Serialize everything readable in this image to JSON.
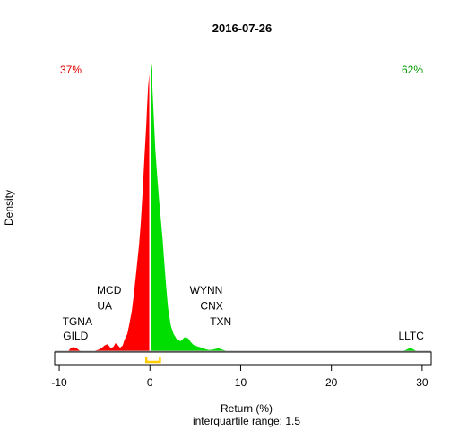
{
  "chart_data": {
    "type": "area",
    "title": "2016-07-26",
    "xlabel": "Return (%)",
    "ylabel": "Density",
    "subtitle": "interquartile range: 1.5",
    "xlim": [
      -10.5,
      31
    ],
    "x_ticks": [
      -10,
      0,
      10,
      20,
      30
    ],
    "ylim": [
      0,
      1.0
    ],
    "negative_share": "37%",
    "positive_share": "62%",
    "colors": {
      "negative": "#ff0000",
      "positive": "#00dd00",
      "iqr": "#ffcc00",
      "median": "#ffffff"
    },
    "median": 0.0,
    "iqr_range": [
      -0.4,
      1.1
    ],
    "series": [
      {
        "name": "",
        "x": [
          -9.0,
          -8.8,
          -8.5,
          -8.2,
          -8.0,
          -7.8,
          -7.5,
          -7.0,
          -6.5,
          -6.0,
          -5.6,
          -5.3,
          -5.0,
          -4.7,
          -4.5,
          -4.3,
          -4.0,
          -3.8,
          -3.5,
          -3.3,
          -3.0,
          -2.8,
          -2.5,
          -2.3,
          -2.0,
          -1.8,
          -1.5,
          -1.2,
          -1.0,
          -0.8,
          -0.6,
          -0.4,
          -0.3,
          -0.2,
          -0.1,
          0.0,
          0.1,
          0.2,
          0.3,
          0.45,
          0.6,
          0.8,
          1.0,
          1.2,
          1.4,
          1.6,
          1.8,
          2.0,
          2.3,
          2.6,
          3.0,
          3.4,
          3.8,
          4.2,
          4.5,
          4.8,
          5.2,
          5.6,
          6.0,
          6.5,
          7.0,
          7.5,
          8.0,
          8.5,
          27.8,
          28.2,
          28.5,
          28.8,
          29.1,
          29.4
        ],
        "y": [
          0.0,
          0.008,
          0.014,
          0.012,
          0.008,
          0.003,
          0.0,
          0.0,
          0.0,
          0.002,
          0.006,
          0.012,
          0.02,
          0.024,
          0.018,
          0.01,
          0.016,
          0.028,
          0.02,
          0.012,
          0.02,
          0.04,
          0.06,
          0.09,
          0.14,
          0.19,
          0.28,
          0.37,
          0.45,
          0.56,
          0.68,
          0.79,
          0.86,
          0.92,
          0.96,
          0.98,
          1.0,
          0.97,
          0.9,
          0.8,
          0.7,
          0.61,
          0.53,
          0.46,
          0.39,
          0.3,
          0.22,
          0.15,
          0.09,
          0.06,
          0.04,
          0.035,
          0.048,
          0.045,
          0.032,
          0.022,
          0.017,
          0.013,
          0.008,
          0.004,
          0.006,
          0.01,
          0.005,
          0.0,
          0.0,
          0.004,
          0.009,
          0.01,
          0.005,
          0.0
        ]
      }
    ],
    "annotations": [
      {
        "text": "MCD",
        "x": -4.5,
        "y": 0.2
      },
      {
        "text": "UA",
        "x": -5.0,
        "y": 0.145
      },
      {
        "text": "TGNA",
        "x": -8.0,
        "y": 0.09
      },
      {
        "text": "GILD",
        "x": -8.2,
        "y": 0.04
      },
      {
        "text": "WYNN",
        "x": 6.2,
        "y": 0.2
      },
      {
        "text": "CNX",
        "x": 6.8,
        "y": 0.145
      },
      {
        "text": "TXN",
        "x": 7.8,
        "y": 0.09
      },
      {
        "text": "LLTC",
        "x": 28.8,
        "y": 0.04
      }
    ]
  }
}
